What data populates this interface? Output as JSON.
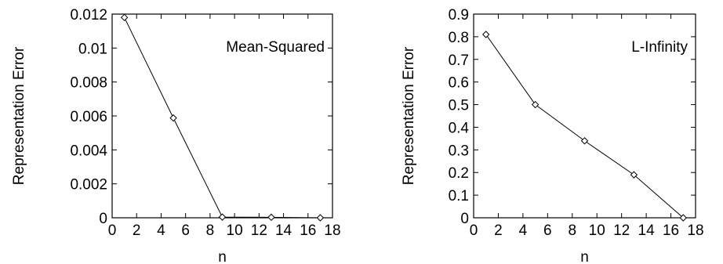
{
  "chart_data": [
    {
      "type": "line",
      "title": "",
      "xlabel": "n",
      "ylabel": "Representation Error",
      "xlim": [
        0,
        18
      ],
      "ylim": [
        0,
        0.012
      ],
      "x_ticks": [
        "0",
        "2",
        "4",
        "6",
        "8",
        "10",
        "12",
        "14",
        "16",
        "18"
      ],
      "y_ticks": [
        "0",
        "0.002",
        "0.004",
        "0.006",
        "0.008",
        "0.01",
        "0.012"
      ],
      "legend_position": "top-right",
      "grid": false,
      "series": [
        {
          "name": "Mean-Squared",
          "marker": "diamond",
          "x": [
            1,
            5,
            9,
            13,
            17
          ],
          "y": [
            0.0118,
            0.00588,
            4e-05,
            3e-05,
            0.0
          ]
        }
      ]
    },
    {
      "type": "line",
      "title": "",
      "xlabel": "n",
      "ylabel": "Representation Error",
      "xlim": [
        0,
        18
      ],
      "ylim": [
        0,
        0.9
      ],
      "x_ticks": [
        "0",
        "2",
        "4",
        "6",
        "8",
        "10",
        "12",
        "14",
        "16",
        "18"
      ],
      "y_ticks": [
        "0",
        "0.1",
        "0.2",
        "0.3",
        "0.4",
        "0.5",
        "0.6",
        "0.7",
        "0.8",
        "0.9"
      ],
      "legend_position": "top-right",
      "grid": false,
      "series": [
        {
          "name": "L-Infinity",
          "marker": "diamond",
          "x": [
            1,
            5,
            9,
            13,
            17
          ],
          "y": [
            0.81,
            0.5,
            0.34,
            0.19,
            0.0
          ]
        }
      ]
    }
  ]
}
